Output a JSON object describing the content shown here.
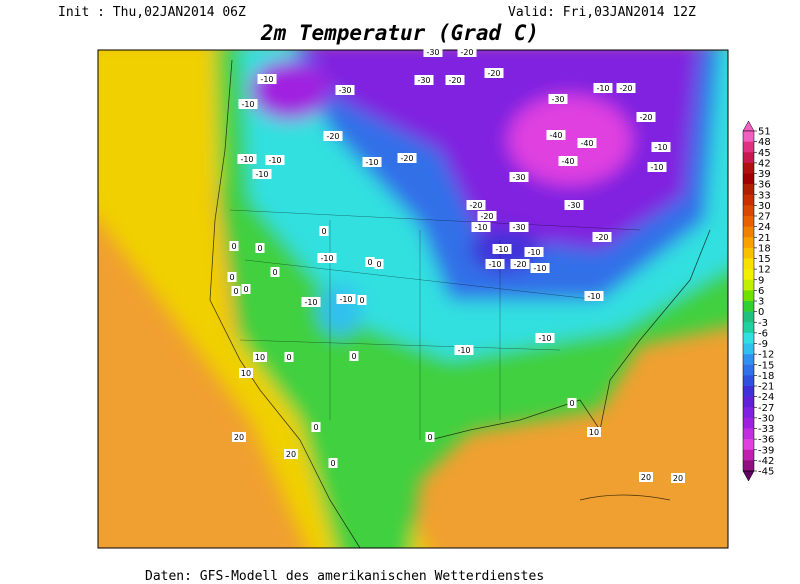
{
  "header": {
    "init": "Init : Thu,02JAN2014 06Z",
    "valid": "Valid: Fri,03JAN2014 12Z",
    "title": "2m Temperatur (Grad C)"
  },
  "colorbar": {
    "ticks": [
      51,
      48,
      45,
      42,
      39,
      36,
      33,
      30,
      27,
      24,
      21,
      18,
      15,
      12,
      9,
      6,
      3,
      0,
      -3,
      -6,
      -9,
      -12,
      -15,
      -18,
      -21,
      -24,
      -27,
      -30,
      -33,
      -36,
      -39,
      -42,
      -45
    ],
    "colors": [
      "#f060c0",
      "#e03080",
      "#c81850",
      "#b01010",
      "#a00000",
      "#b02000",
      "#c83000",
      "#d84800",
      "#e86000",
      "#f08000",
      "#f8a000",
      "#f8c000",
      "#f8e000",
      "#f0f000",
      "#c0f000",
      "#70e000",
      "#30d030",
      "#20c080",
      "#20d0a0",
      "#30e0e0",
      "#30c0f0",
      "#3090f0",
      "#3070e8",
      "#3050e0",
      "#4030d8",
      "#6020d8",
      "#8020e0",
      "#a020e0",
      "#c030e0",
      "#e040e0",
      "#c020b0",
      "#901080",
      "#600060"
    ]
  },
  "map": {
    "labels": [
      -30,
      -20,
      -10,
      -10,
      -30,
      -30,
      -20,
      -20,
      -10,
      -20,
      -30,
      -20,
      -20,
      -40,
      -40,
      -10,
      -10,
      -10,
      -10,
      -20,
      -40,
      -10,
      -10,
      -30,
      -20,
      -30,
      -20,
      -10,
      -30,
      -20,
      0,
      0,
      0,
      -10,
      -10,
      -10,
      0,
      0,
      -10,
      -20,
      -10,
      0,
      0,
      0,
      0,
      -10,
      -10,
      0,
      -10,
      -10,
      -10,
      10,
      0,
      0,
      10,
      0,
      0,
      10,
      20,
      0,
      20,
      0,
      20,
      20
    ]
  },
  "footer": "Daten: GFS-Modell des amerikanischen Wetterdienstes"
}
